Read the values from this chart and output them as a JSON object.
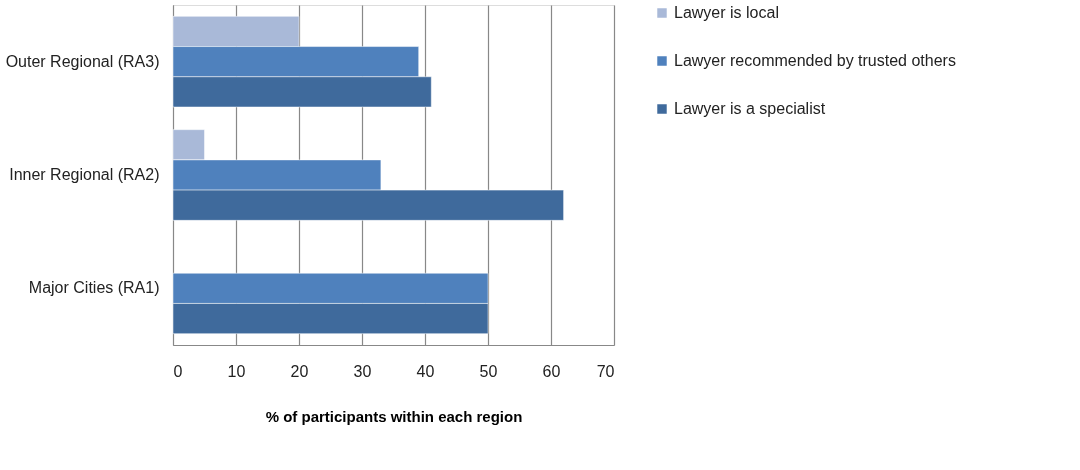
{
  "chart_data": {
    "type": "bar",
    "orientation": "horizontal",
    "xlabel": "% of participants within each region",
    "categories": [
      "Outer Regional (RA3)",
      "Inner Regional (RA2)",
      "Major Cities (RA1)"
    ],
    "series": [
      {
        "name": "Lawyer is local",
        "color": "#a9b9d8",
        "values": [
          20,
          5,
          null
        ]
      },
      {
        "name": "Lawyer recommended by trusted others",
        "color": "#4f81bd",
        "values": [
          39,
          33,
          50
        ]
      },
      {
        "name": "Lawyer is a specialist",
        "color": "#3f6a9c",
        "values": [
          41,
          62,
          50
        ]
      }
    ],
    "xlim": [
      0,
      70
    ],
    "xticks": [
      0,
      10,
      20,
      30,
      40,
      50,
      60,
      70
    ],
    "grid": "x",
    "legend": "right"
  }
}
